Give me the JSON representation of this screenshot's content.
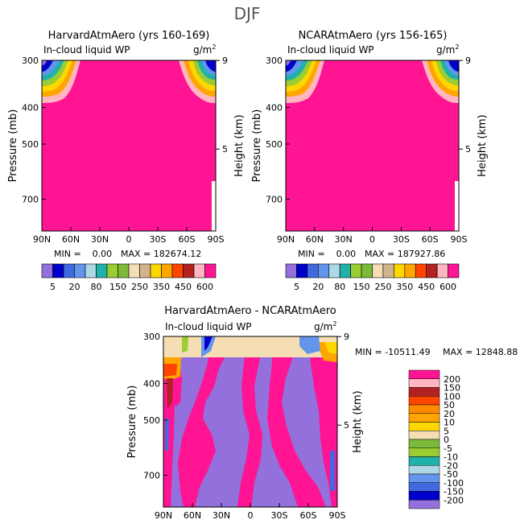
{
  "page_title": "DJF",
  "colors": {
    "abs_palette": [
      "#9370db",
      "#0000cd",
      "#4169e1",
      "#6495ed",
      "#add8e6",
      "#20b2aa",
      "#9acd32",
      "#7cba3a",
      "#f5deb3",
      "#d2b48c",
      "#ffd700",
      "#ffa500",
      "#ff4500",
      "#b22222",
      "#ffb6c1",
      "#ff1493"
    ],
    "diff_palette": [
      "#9370db",
      "#0000cd",
      "#4169e1",
      "#6495ed",
      "#add8e6",
      "#20b2aa",
      "#9acd32",
      "#7cba3a",
      "#f5deb3",
      "#ffd700",
      "#ffa500",
      "#ff8c00",
      "#ff4500",
      "#b22222",
      "#ffb6c1",
      "#ff1493"
    ]
  },
  "chart_data": [
    {
      "type": "heatmap",
      "title": "HarvardAtmAero (yrs 160-169)",
      "subtitle_left": "In-cloud liquid WP",
      "subtitle_right": "g/m",
      "subtitle_sup": "2",
      "ylabel": "Pressure (mb)",
      "ylabel_right": "Height (km)",
      "x_ticks": [
        "90N",
        "60N",
        "30N",
        "0",
        "30S",
        "60S",
        "90S"
      ],
      "y_ticks": [
        "300",
        "400",
        "500",
        "700"
      ],
      "y_ticks_right": [
        "9",
        "5"
      ],
      "ylim": [
        300,
        850
      ],
      "min_label": "MIN =    0.00",
      "max_label": "MAX = 182674.12",
      "levels": [
        "5",
        "20",
        "80",
        "150",
        "250",
        "350",
        "450",
        "600"
      ],
      "dominant_value": "> 600"
    },
    {
      "type": "heatmap",
      "title": "NCARAtmAero (yrs 156-165)",
      "subtitle_left": "In-cloud liquid WP",
      "subtitle_right": "g/m",
      "subtitle_sup": "2",
      "ylabel": "Pressure (mb)",
      "ylabel_right": "Height (km)",
      "x_ticks": [
        "90N",
        "60N",
        "30N",
        "0",
        "30S",
        "60S",
        "90S"
      ],
      "y_ticks": [
        "300",
        "400",
        "500",
        "700"
      ],
      "y_ticks_right": [
        "9",
        "5"
      ],
      "ylim": [
        300,
        850
      ],
      "min_label": "MIN =    0.00",
      "max_label": "MAX = 187927.86",
      "levels": [
        "5",
        "20",
        "80",
        "150",
        "250",
        "350",
        "450",
        "600"
      ],
      "dominant_value": "> 600"
    },
    {
      "type": "heatmap",
      "title": "HarvardAtmAero - NCARAtmAero",
      "subtitle_left": "In-cloud liquid WP",
      "subtitle_right": "g/m",
      "subtitle_sup": "2",
      "ylabel": "Pressure (mb)",
      "ylabel_right": "Height (km)",
      "x_ticks": [
        "90N",
        "60N",
        "30N",
        "0",
        "30S",
        "60S",
        "90S"
      ],
      "y_ticks": [
        "300",
        "400",
        "500",
        "700"
      ],
      "y_ticks_right": [
        "9",
        "5"
      ],
      "ylim": [
        300,
        850
      ],
      "min_label": "MIN = -10511.49",
      "max_label": "MAX = 12848.88",
      "levels": [
        "200",
        "150",
        "100",
        "50",
        "20",
        "10",
        "5",
        "0",
        "-5",
        "-10",
        "-20",
        "-50",
        "-100",
        "-150",
        "-200"
      ]
    }
  ]
}
